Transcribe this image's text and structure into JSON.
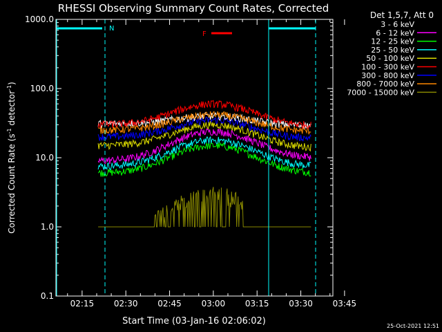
{
  "chart_data": {
    "type": "line",
    "title": "RHESSI Observing Summary Count Rates, Corrected",
    "xlabel": "Start Time (03-Jan-16 02:06:02)",
    "ylabel_main": "Corrected Count Rate (s",
    "ylabel_sup1": "-1",
    "ylabel_mid": " detector",
    "ylabel_sup2": "-1",
    "ylabel_end": ")",
    "yscale": "log",
    "ylim": [
      0.1,
      1000
    ],
    "xlim_minutes": [
      6.03,
      101.0
    ],
    "y_ticks": [
      {
        "v": 1000,
        "label": "1000.0"
      },
      {
        "v": 100,
        "label": "100.0"
      },
      {
        "v": 10,
        "label": "10.0"
      },
      {
        "v": 1,
        "label": "1.0"
      },
      {
        "v": 0.1,
        "label": "0.1"
      }
    ],
    "x_ticks": [
      {
        "m": 15,
        "label": "02:15"
      },
      {
        "m": 30,
        "label": "02:30"
      },
      {
        "m": 45,
        "label": "02:45"
      },
      {
        "m": 60,
        "label": "03:00"
      },
      {
        "m": 75,
        "label": "03:15"
      },
      {
        "m": 90,
        "label": "03:30"
      },
      {
        "m": 105,
        "label": "03:45"
      }
    ],
    "legend_title": "Det 1,5,7, Att 0",
    "legend_position": "right",
    "series": [
      {
        "name": "3 - 6 keV",
        "color": "#000000",
        "pre": 31,
        "peak": 40,
        "post": 29
      },
      {
        "name": "6 - 12 keV",
        "color": "#ff00ff",
        "pre": 9,
        "peak": 24,
        "post": 10
      },
      {
        "name": "12 - 25 keV",
        "color": "#00ff00",
        "pre": 6,
        "peak": 15,
        "post": 6
      },
      {
        "name": "25 - 50 keV",
        "color": "#00ffff",
        "pre": 7.5,
        "peak": 18,
        "post": 7.5
      },
      {
        "name": "50 - 100 keV",
        "color": "#dddd00",
        "pre": 15,
        "peak": 30,
        "post": 14
      },
      {
        "name": "100 - 300 keV",
        "color": "#ff0000",
        "pre": 30,
        "peak": 60,
        "post": 29
      },
      {
        "name": "300 - 800 keV",
        "color": "#0000ff",
        "pre": 20,
        "peak": 35,
        "post": 19
      },
      {
        "name": "800 - 7000 keV",
        "color": "#ff8800",
        "pre": 25,
        "peak": 42,
        "post": 24
      },
      {
        "name": "7000 - 15000 keV",
        "color": "#888800",
        "pre": 1,
        "peak": 2.5,
        "post": 1
      }
    ],
    "flag_N_label": "N",
    "flag_F_label": "F",
    "footer_date": "25-Oct-2021 12:51"
  }
}
